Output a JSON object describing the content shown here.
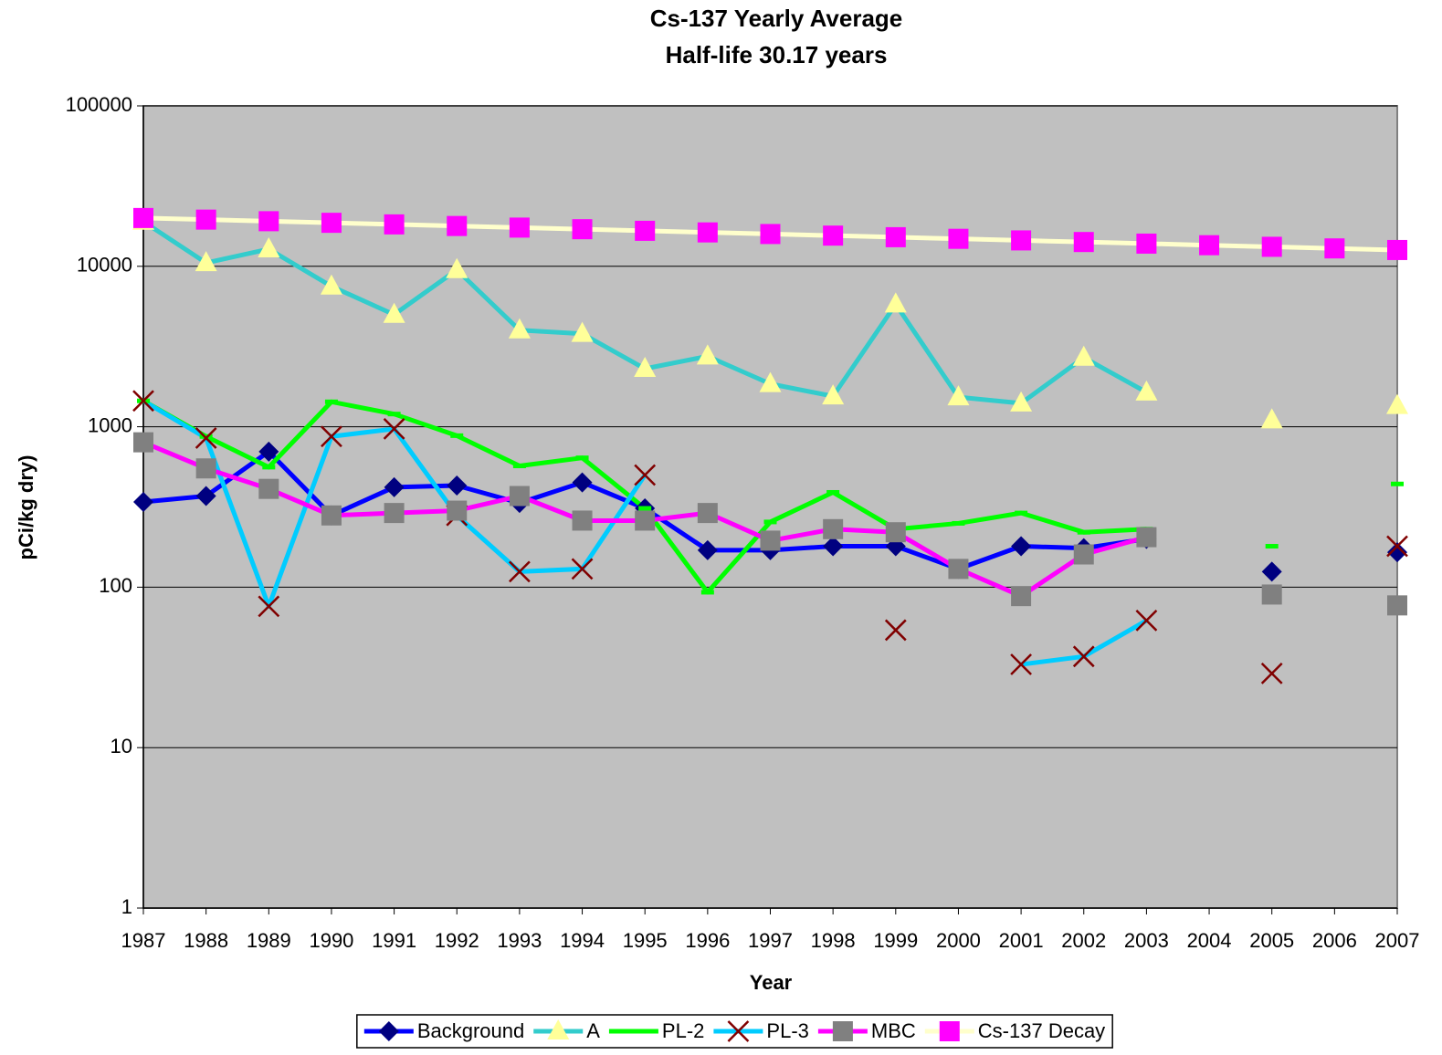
{
  "chart_data": {
    "type": "line",
    "title": "Cs-137 Yearly Average",
    "subtitle": "Half-life 30.17 years",
    "x_label": "Year",
    "y_label": "pCi/kg dry)",
    "categories": [
      "1987",
      "1988",
      "1989",
      "1990",
      "1991",
      "1992",
      "1993",
      "1994",
      "1995",
      "1996",
      "1997",
      "1998",
      "1999",
      "2000",
      "2001",
      "2002",
      "2003",
      "2004",
      "2005",
      "2006",
      "2007"
    ],
    "log_scale": true,
    "grid": true,
    "legend": "bottom",
    "ylim": [
      1,
      100000
    ],
    "yticks": [
      1,
      10,
      100,
      1000,
      10000,
      100000
    ],
    "series": [
      {
        "name": "Background",
        "color": "#0000ff",
        "marker": "diamond",
        "marker_color": "#000080",
        "values": [
          340,
          370,
          700,
          280,
          420,
          430,
          335,
          450,
          310,
          170,
          170,
          180,
          180,
          130,
          180,
          175,
          200,
          null,
          125,
          null,
          165
        ]
      },
      {
        "name": "A",
        "color": "#33cccc",
        "marker": "triangle",
        "marker_color": "#ffff99",
        "values": [
          19000,
          10500,
          12800,
          7500,
          5000,
          9500,
          4000,
          3800,
          2300,
          2750,
          1850,
          1550,
          5800,
          1530,
          1400,
          2700,
          1640,
          null,
          1100,
          null,
          1350
        ]
      },
      {
        "name": "PL-2",
        "color": "#00ff00",
        "marker": "dash",
        "marker_color": "#00ff00",
        "values": [
          1450,
          870,
          560,
          1430,
          1200,
          880,
          570,
          640,
          310,
          93,
          255,
          390,
          230,
          250,
          290,
          220,
          230,
          null,
          180,
          null,
          440
        ]
      },
      {
        "name": "PL-3",
        "color": "#00ccff",
        "marker": "x",
        "marker_color": "#800000",
        "values": [
          1450,
          850,
          76,
          870,
          970,
          280,
          125,
          130,
          500,
          null,
          null,
          null,
          54,
          null,
          33,
          37,
          62,
          null,
          29,
          null,
          180
        ]
      },
      {
        "name": "MBC",
        "color": "#ff00ff",
        "marker": "square",
        "marker_color": "#808080",
        "values": [
          800,
          550,
          410,
          280,
          290,
          300,
          370,
          260,
          260,
          290,
          195,
          230,
          220,
          130,
          88,
          160,
          205,
          null,
          90,
          null,
          77
        ]
      },
      {
        "name": "Cs-137 Decay",
        "color": "#ffffcc",
        "marker": "square",
        "marker_color": "#ff00ff",
        "values": [
          20000,
          19546,
          19101,
          18668,
          18244,
          17830,
          17425,
          17029,
          16643,
          16265,
          15896,
          15535,
          15182,
          14837,
          14500,
          14171,
          13850,
          13535,
          13228,
          12928,
          12634
        ]
      }
    ]
  }
}
